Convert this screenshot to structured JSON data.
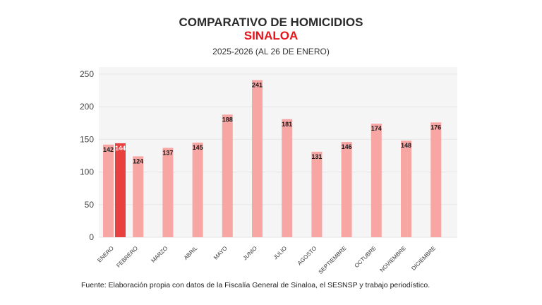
{
  "title": "COMPARATIVO DE HOMICIDIOS",
  "subtitle": "SINALOA",
  "period": "2025-2026 (AL 26 DE ENERO)",
  "source": "Fuente: Elaboración propia con datos de la Fiscalía General de Sinaloa, el SESNSP y trabajo periodístico.",
  "chart_data": {
    "type": "bar",
    "title": "COMPARATIVO DE HOMICIDIOS",
    "categories": [
      "ENERO",
      "FEBRERO",
      "MARZO",
      "ABRIL",
      "MAYO",
      "JUNIO",
      "JULIO",
      "AGOSTO",
      "SEPTIEMBRE",
      "OCTUBRE",
      "NOVIEMBRE",
      "DICIEMBRE"
    ],
    "series": [
      {
        "values": [
          142,
          124,
          137,
          145,
          188,
          241,
          181,
          131,
          146,
          174,
          148,
          176
        ],
        "color": "#f7a6a4"
      },
      {
        "values": [
          144,
          null,
          null,
          null,
          null,
          null,
          null,
          null,
          null,
          null,
          null,
          null
        ],
        "color": "#e8403f"
      }
    ],
    "ylim": [
      0,
      250
    ],
    "yticks": [
      0,
      50,
      100,
      150,
      200,
      250
    ],
    "grid": true,
    "legend": "none",
    "data_labels": true
  }
}
